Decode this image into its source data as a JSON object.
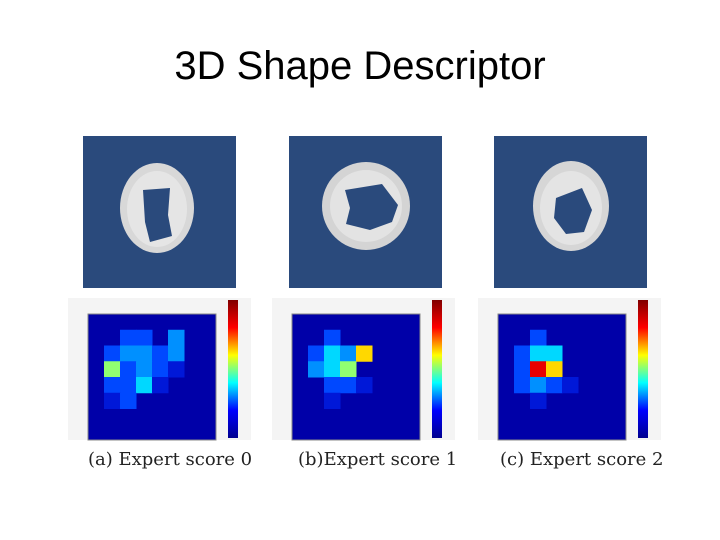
{
  "slide": {
    "title": "3D Shape Descriptor",
    "panels": [
      {
        "caption": "(a) Expert score 0"
      },
      {
        "caption": "(b)Expert score 1"
      },
      {
        "caption": "(c) Expert score 2"
      }
    ]
  }
}
